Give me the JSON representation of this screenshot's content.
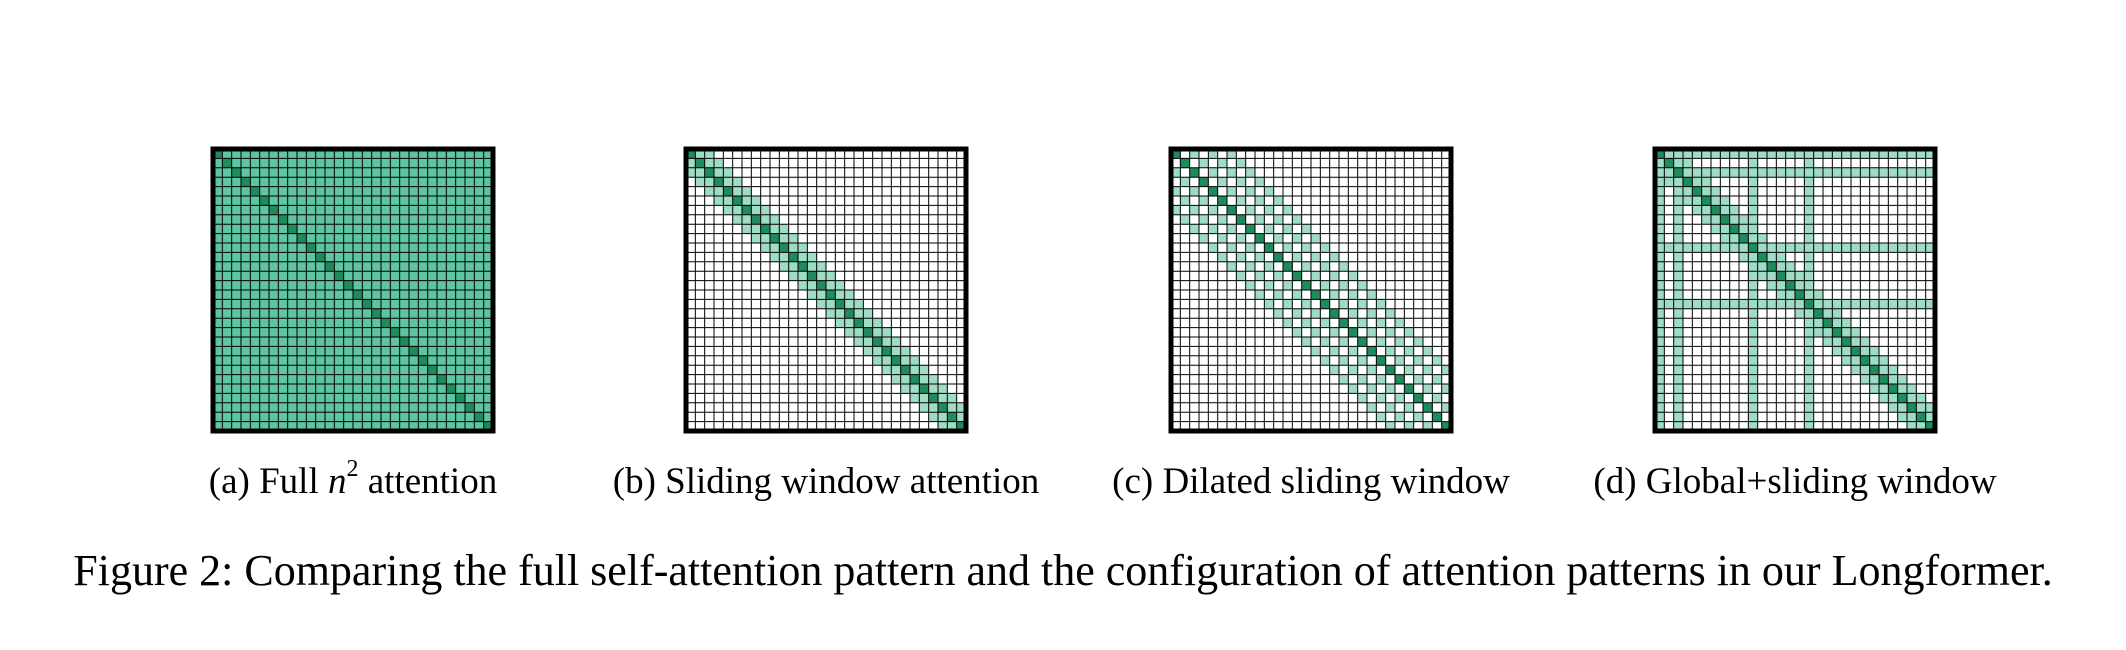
{
  "colors": {
    "diagonal": "#1e8b5a",
    "attended": "#5fc4a3",
    "light": "#9fdcc5",
    "empty": "#ffffff",
    "grid": "#000000"
  },
  "panels": [
    {
      "id": "a",
      "pattern": "full",
      "label_prefix": "(a) Full ",
      "label_var": "n",
      "label_exp": "2",
      "label_suffix": " attention"
    },
    {
      "id": "b",
      "pattern": "sliding",
      "window": 2,
      "label": "(b) Sliding window attention"
    },
    {
      "id": "c",
      "pattern": "dilated",
      "window": 3,
      "dilation": 2,
      "label": "(c) Dilated sliding window"
    },
    {
      "id": "d",
      "pattern": "global_sliding",
      "window": 2,
      "global_positions": [
        0,
        2,
        10,
        16
      ],
      "label": "(d) Global+sliding window"
    }
  ],
  "grid_size": 30,
  "figure_caption": "Figure 2: Comparing the full self-attention pattern and the configuration of attention patterns in our Longformer."
}
